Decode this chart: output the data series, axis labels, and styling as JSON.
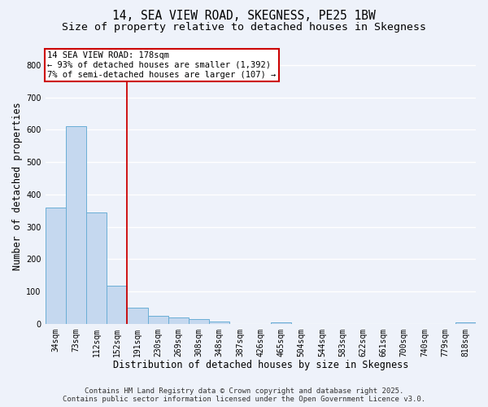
{
  "title_line1": "14, SEA VIEW ROAD, SKEGNESS, PE25 1BW",
  "title_line2": "Size of property relative to detached houses in Skegness",
  "xlabel": "Distribution of detached houses by size in Skegness",
  "ylabel": "Number of detached properties",
  "categories": [
    "34sqm",
    "73sqm",
    "112sqm",
    "152sqm",
    "191sqm",
    "230sqm",
    "269sqm",
    "308sqm",
    "348sqm",
    "387sqm",
    "426sqm",
    "465sqm",
    "504sqm",
    "544sqm",
    "583sqm",
    "622sqm",
    "661sqm",
    "700sqm",
    "740sqm",
    "779sqm",
    "818sqm"
  ],
  "values": [
    360,
    612,
    345,
    117,
    50,
    25,
    20,
    15,
    8,
    0,
    0,
    5,
    0,
    0,
    0,
    0,
    0,
    0,
    0,
    0,
    5
  ],
  "bar_color": "#c5d8ef",
  "bar_edge_color": "#6aaed6",
  "vline_position": 3.5,
  "vline_color": "#cc0000",
  "annotation_text_line1": "14 SEA VIEW ROAD: 178sqm",
  "annotation_text_line2": "← 93% of detached houses are smaller (1,392)",
  "annotation_text_line3": "7% of semi-detached houses are larger (107) →",
  "annotation_box_color": "#cc0000",
  "ylim": [
    0,
    850
  ],
  "yticks": [
    0,
    100,
    200,
    300,
    400,
    500,
    600,
    700,
    800
  ],
  "footer_line1": "Contains HM Land Registry data © Crown copyright and database right 2025.",
  "footer_line2": "Contains public sector information licensed under the Open Government Licence v3.0.",
  "bg_color": "#eef2fa",
  "plot_bg_color": "#eef2fa",
  "grid_color": "#ffffff",
  "title_fontsize": 10.5,
  "subtitle_fontsize": 9.5,
  "axis_label_fontsize": 8.5,
  "tick_fontsize": 7,
  "annotation_fontsize": 7.5,
  "footer_fontsize": 6.5
}
